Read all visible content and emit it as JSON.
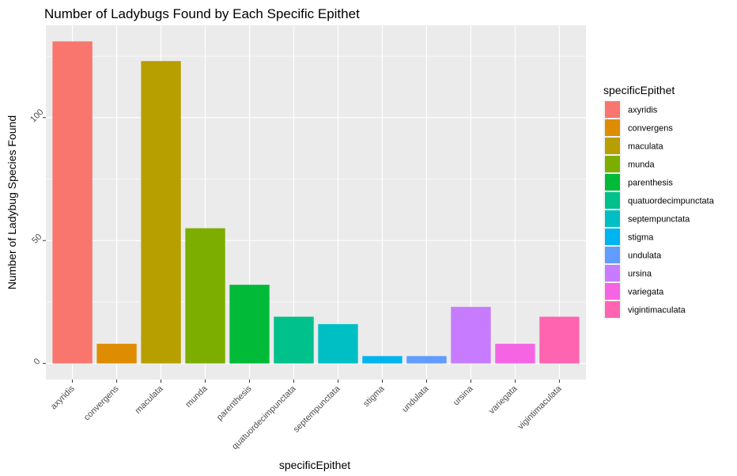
{
  "chart_data": {
    "type": "bar",
    "title": "Number of Ladybugs Found by Each Specific Epithet",
    "xlabel": "specificEpithet",
    "ylabel": "Number of Ladybug Species Found",
    "categories": [
      "axyridis",
      "convergens",
      "maculata",
      "munda",
      "parenthesis",
      "quatuordecimpunctata",
      "septempunctata",
      "stigma",
      "undulata",
      "ursina",
      "variegata",
      "vigintimaculata"
    ],
    "values": [
      131,
      8,
      123,
      55,
      32,
      19,
      16,
      3,
      3,
      23,
      8,
      19
    ],
    "colors": [
      "#F8766D",
      "#DE8C00",
      "#B79F00",
      "#7CAE00",
      "#00BA38",
      "#00C08B",
      "#00BFC4",
      "#00B4F0",
      "#619CFF",
      "#C77CFF",
      "#F564E3",
      "#FF64B0"
    ],
    "yticks": [
      0,
      50,
      100
    ],
    "ylim": [
      -6.55,
      137.55
    ],
    "grid": true,
    "panel_background": "#EBEBEB",
    "legend": {
      "title": "specificEpithet",
      "position": "right",
      "entries": [
        "axyridis",
        "convergens",
        "maculata",
        "munda",
        "parenthesis",
        "quatuordecimpunctata",
        "septempunctata",
        "stigma",
        "undulata",
        "ursina",
        "variegata",
        "vigintimaculata"
      ]
    }
  }
}
